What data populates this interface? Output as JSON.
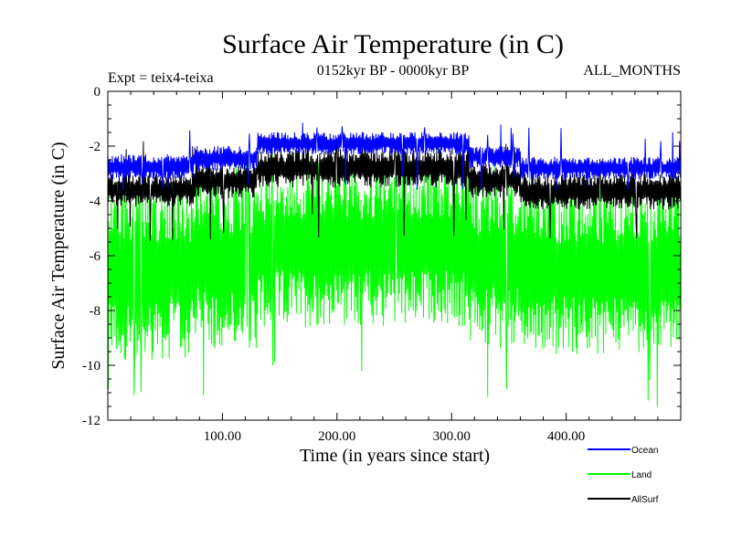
{
  "chart_data": {
    "type": "line",
    "title": "Surface Air Temperature (in C)",
    "subtitle_left": "Expt = teix4-teixa",
    "subtitle_center": "0152kyr BP - 0000kyr BP",
    "subtitle_right": "ALL_MONTHS",
    "xlabel": "Time (in years since start)",
    "ylabel": "Surface Air Temperature (in C)",
    "xlim": [
      0,
      500
    ],
    "ylim": [
      -12,
      0
    ],
    "x_ticks": [
      100,
      200,
      300,
      400
    ],
    "x_tick_labels": [
      "100.00",
      "200.00",
      "300.00",
      "400.00"
    ],
    "y_ticks": [
      0,
      -2,
      -4,
      -6,
      -8,
      -10,
      -12
    ],
    "y_tick_labels": [
      "0",
      "-2",
      "-4",
      "-6",
      "-8",
      "-10",
      "-12"
    ],
    "grid": false,
    "legend_position": "bottom-right, below plot",
    "series": [
      {
        "name": "Land",
        "color": "#00ff00",
        "segments": [
          {
            "x_start": 0,
            "x_end": 75,
            "upper": -3.2,
            "lower": -9.8
          },
          {
            "x_start": 75,
            "x_end": 130,
            "upper": -3.0,
            "lower": -9.4
          },
          {
            "x_start": 130,
            "x_end": 315,
            "upper": -2.6,
            "lower": -8.6
          },
          {
            "x_start": 315,
            "x_end": 360,
            "upper": -3.0,
            "lower": -9.4
          },
          {
            "x_start": 360,
            "x_end": 500,
            "upper": -3.4,
            "lower": -9.6
          }
        ],
        "min_value": -11.6,
        "max_value": -2.0
      },
      {
        "name": "AllSurf",
        "color": "#000000",
        "segments": [
          {
            "x_start": 0,
            "x_end": 75,
            "upper": -3.0,
            "lower": -4.2
          },
          {
            "x_start": 75,
            "x_end": 130,
            "upper": -2.6,
            "lower": -3.9
          },
          {
            "x_start": 130,
            "x_end": 315,
            "upper": -2.1,
            "lower": -3.5
          },
          {
            "x_start": 315,
            "x_end": 360,
            "upper": -2.6,
            "lower": -3.9
          },
          {
            "x_start": 360,
            "x_end": 500,
            "upper": -3.0,
            "lower": -4.3
          }
        ],
        "min_value": -5.5,
        "max_value": -1.8
      },
      {
        "name": "Ocean",
        "color": "#0000ff",
        "segments": [
          {
            "x_start": 0,
            "x_end": 75,
            "upper": -2.3,
            "lower": -3.2
          },
          {
            "x_start": 75,
            "x_end": 130,
            "upper": -2.0,
            "lower": -2.9
          },
          {
            "x_start": 130,
            "x_end": 315,
            "upper": -1.5,
            "lower": -2.3
          },
          {
            "x_start": 315,
            "x_end": 360,
            "upper": -2.0,
            "lower": -2.8
          },
          {
            "x_start": 360,
            "x_end": 500,
            "upper": -2.4,
            "lower": -3.2
          }
        ],
        "min_value": -3.6,
        "max_value": -1.1
      }
    ],
    "legend_order": [
      "Ocean",
      "Land",
      "AllSurf"
    ]
  }
}
